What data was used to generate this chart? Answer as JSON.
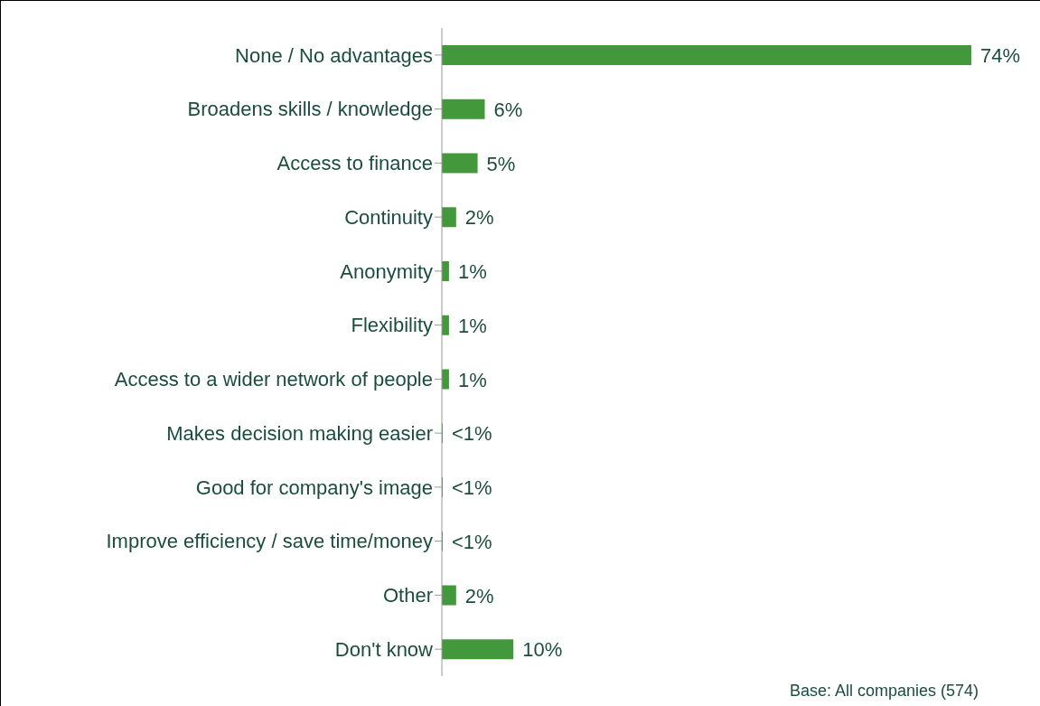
{
  "chart_data": {
    "type": "bar",
    "orientation": "horizontal",
    "categories": [
      "None / No advantages",
      "Broadens skills / knowledge",
      "Access to finance",
      "Continuity",
      "Anonymity",
      "Flexibility",
      "Access to a wider network of people",
      "Makes decision making easier",
      "Good for company's image",
      "Improve efficiency / save time/money",
      "Other",
      "Don't know"
    ],
    "values": [
      74,
      6,
      5,
      2,
      1,
      1,
      1,
      0,
      0,
      0,
      2,
      10
    ],
    "value_labels": [
      "74%",
      "6%",
      "5%",
      "2%",
      "1%",
      "1%",
      "1%",
      "<1%",
      "<1%",
      "<1%",
      "2%",
      "10%"
    ],
    "color": "#43983b",
    "annotations": [
      "Base: All companies (574)"
    ]
  }
}
